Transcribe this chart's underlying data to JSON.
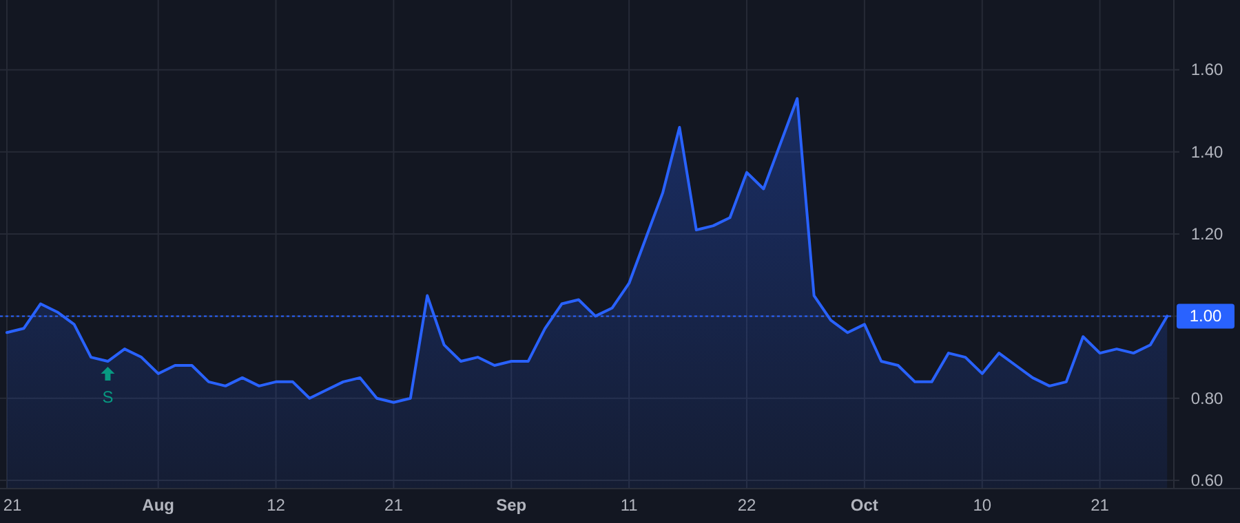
{
  "chart_data": {
    "type": "area",
    "categories": [
      "21",
      null,
      null,
      null,
      null,
      null,
      null,
      null,
      null,
      "Aug",
      null,
      null,
      null,
      null,
      null,
      null,
      "12",
      null,
      null,
      null,
      null,
      null,
      null,
      "21",
      null,
      null,
      null,
      null,
      null,
      null,
      "Sep",
      null,
      null,
      null,
      null,
      null,
      null,
      "11",
      null,
      null,
      null,
      null,
      null,
      null,
      "22",
      null,
      null,
      null,
      null,
      null,
      null,
      "Oct",
      null,
      null,
      null,
      null,
      null,
      null,
      "10",
      null,
      null,
      null,
      null,
      null,
      null,
      "21",
      null,
      null,
      null,
      null
    ],
    "series": [
      {
        "color": "#2962ff",
        "values": [
          0.96,
          0.97,
          1.03,
          1.01,
          0.98,
          0.9,
          0.89,
          0.92,
          0.9,
          0.86,
          0.88,
          0.88,
          0.84,
          0.83,
          0.85,
          0.83,
          0.84,
          0.84,
          0.8,
          0.82,
          0.84,
          0.85,
          0.8,
          0.79,
          0.8,
          1.05,
          0.93,
          0.89,
          0.9,
          0.88,
          0.89,
          0.89,
          0.97,
          1.03,
          1.04,
          1.0,
          1.02,
          1.08,
          1.19,
          1.3,
          1.46,
          1.21,
          1.22,
          1.24,
          1.35,
          1.31,
          1.42,
          1.53,
          1.05,
          0.99,
          0.96,
          0.98,
          0.89,
          0.88,
          0.84,
          0.84,
          0.91,
          0.9,
          0.86,
          0.91,
          0.88,
          0.85,
          0.83,
          0.84,
          0.95,
          0.91,
          0.92,
          0.91,
          0.93,
          1.0
        ]
      },
      {
        "type": "scatter",
        "color": "#089981",
        "marker": "triangle",
        "values": [
          null,
          null,
          null,
          null,
          null,
          null,
          0.86,
          null,
          null,
          null,
          null,
          null,
          null,
          null,
          null,
          null,
          null,
          null,
          null,
          null,
          null,
          null,
          null,
          null,
          null,
          null,
          null,
          null,
          null,
          null,
          null,
          null,
          null,
          null,
          null,
          null,
          null,
          null,
          null,
          null,
          null,
          null,
          null,
          null,
          null,
          null,
          null,
          null,
          null,
          null,
          null,
          null,
          null,
          null,
          null,
          null,
          null,
          null,
          null,
          null,
          null,
          null,
          null,
          null,
          null,
          null,
          null,
          null,
          null,
          null
        ]
      }
    ],
    "ylim": [
      0.58,
      1.77
    ],
    "yticks": [
      {
        "value": 0.6,
        "label": "0.60"
      },
      {
        "value": 0.8,
        "label": "0.80"
      },
      {
        "value": 1.0,
        "label": null
      },
      {
        "value": 1.2,
        "label": "1.20"
      },
      {
        "value": 1.4,
        "label": "1.40"
      },
      {
        "value": 1.6,
        "label": "1.60"
      }
    ],
    "grid": true,
    "ref_lines": [
      {
        "axis": "y",
        "value": 1.0,
        "label": "1.00",
        "color": "#2962ff",
        "line_style": "dotted"
      }
    ],
    "annotations": [
      "S"
    ]
  }
}
